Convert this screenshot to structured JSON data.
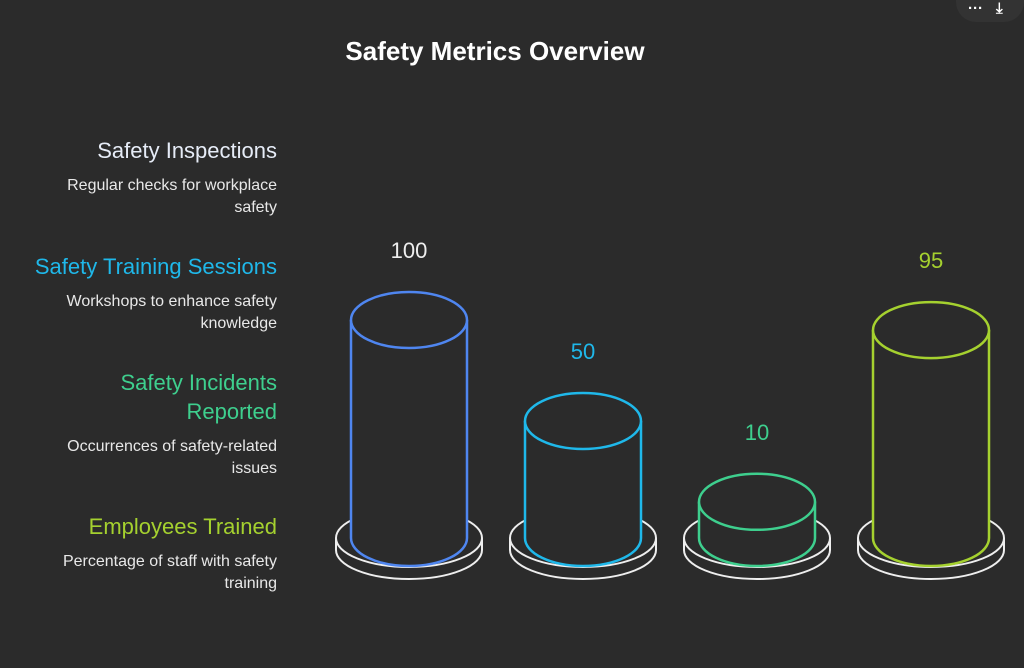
{
  "title": "Safety Metrics Overview",
  "toolbar": {
    "more_icon": "more-horizontal-icon",
    "download_icon": "download-icon"
  },
  "chart_data": {
    "type": "bar",
    "style": "3d-cylinder",
    "title": "Safety Metrics Overview",
    "categories": [
      "Safety Inspections",
      "Safety Training Sessions",
      "Safety Incidents Reported",
      "Employees Trained"
    ],
    "descriptions": [
      "Regular checks for workplace safety",
      "Workshops to enhance safety knowledge",
      "Occurrences of safety-related issues",
      "Percentage of staff with safety training"
    ],
    "values": [
      100,
      50,
      10,
      95
    ],
    "colors": [
      "#4f86f0",
      "#1fb8ea",
      "#3ecf8e",
      "#a5d12f"
    ],
    "label_colors": [
      "#e6ecf7",
      "#1fb8ea",
      "#3ecf8e",
      "#a5d12f"
    ],
    "value_label_colors": [
      "#eeeeee",
      "#1fb8ea",
      "#3ecf8e",
      "#a5d12f"
    ],
    "legend": "left",
    "grid": false
  }
}
